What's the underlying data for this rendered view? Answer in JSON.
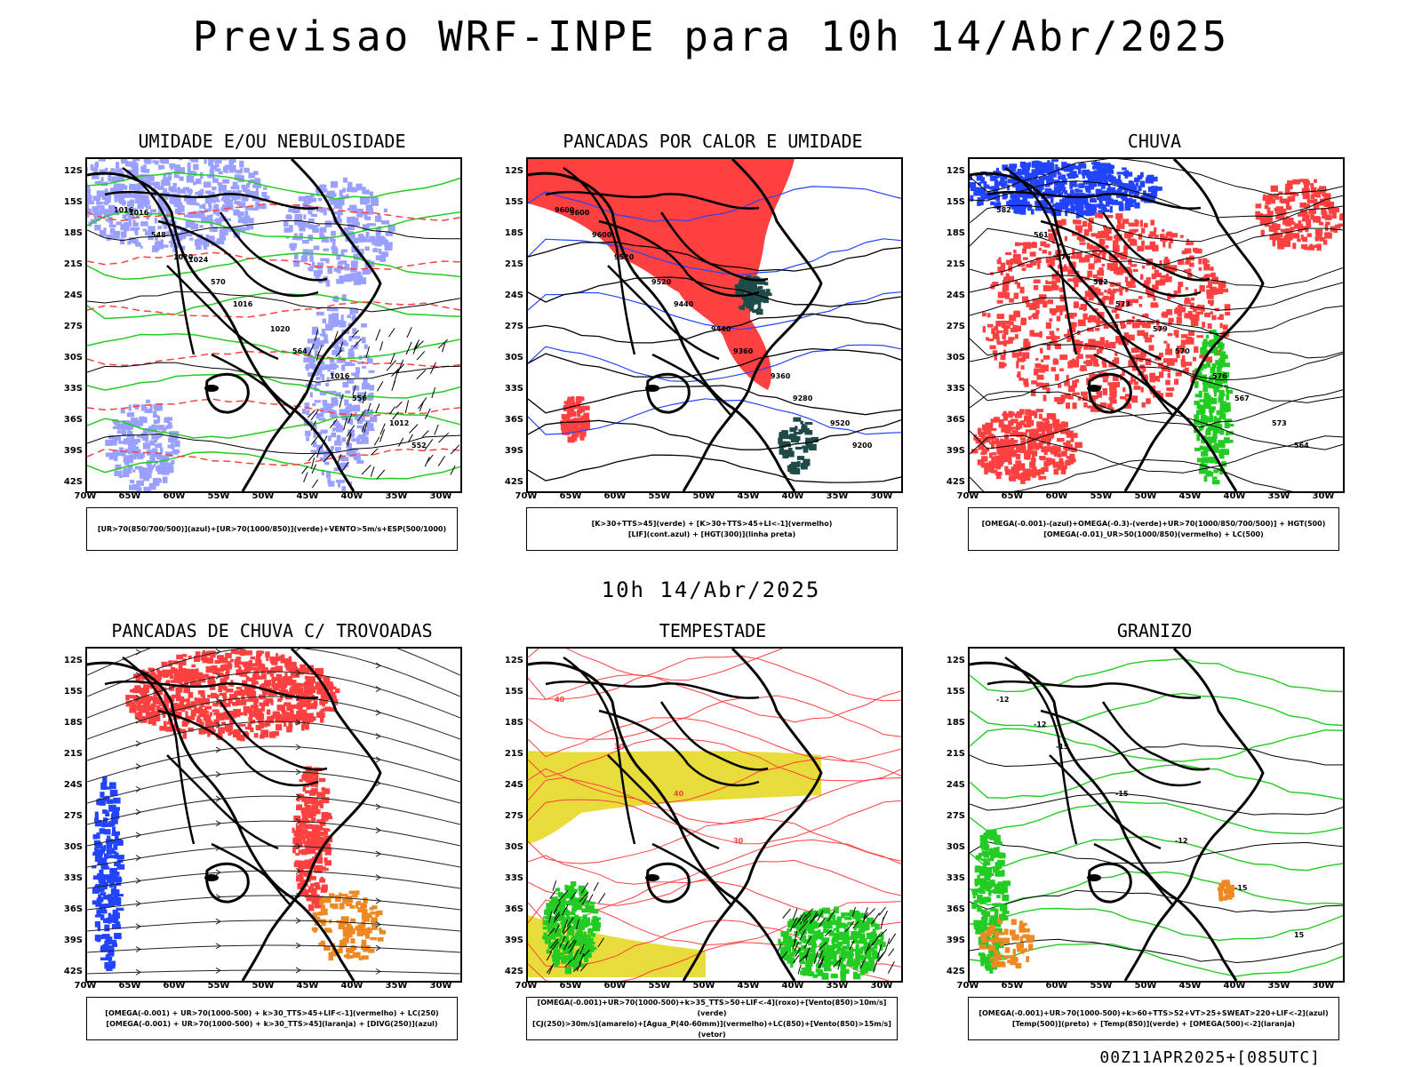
{
  "header": {
    "title": "Previsao WRF-INPE  para 10h 14/Abr/2025",
    "subtitle": "10h 14/Abr/2025",
    "footer": "00Z11APR2025+[085UTC]"
  },
  "axes": {
    "lat_labels": [
      "12S",
      "15S",
      "18S",
      "21S",
      "24S",
      "27S",
      "30S",
      "33S",
      "36S",
      "39S",
      "42S"
    ],
    "lon_labels": [
      "70W",
      "65W",
      "60W",
      "55W",
      "50W",
      "45W",
      "40W",
      "35W",
      "30W"
    ]
  },
  "colors": {
    "blue_fill": "#9aa0ff",
    "dark_blue": "#2244ff",
    "red": "#ff4040",
    "green": "#22cc22",
    "yellow": "#e8dc3a",
    "orange": "#ee8822",
    "teal": "#1e4b48"
  },
  "panels": [
    {
      "title": "UMIDADE E/OU NEBULOSIDADE",
      "legend": [
        "[UR>70(850/700/500)](azul)+[UR>70(1000/850)](verde)+VENTO>5m/s+ESP(500/1000)"
      ],
      "labels": [
        "1016",
        "1020",
        "1016",
        "564",
        "556",
        "552",
        "548",
        "570",
        "1020",
        "1016",
        "1012",
        "1016",
        "1024"
      ]
    },
    {
      "title": "PANCADAS POR CALOR E UMIDADE",
      "legend": [
        "[K>30+TTS>45](verde) + [K>30+TTS>45+LI<-1](vermelho)",
        "[LIF](cont.azul) + [HGT(300)](linha preta)"
      ],
      "labels": [
        "9600",
        "9520",
        "9440",
        "9360",
        "9280",
        "9200",
        "9600",
        "9520",
        "9440",
        "9360",
        "9520",
        "9600"
      ]
    },
    {
      "title": "CHUVA",
      "legend": [
        "[OMEGA(-0.001)-(azul)+OMEGA(-0.3)-(verde)+UR>70(1000/850/700/500)] + HGT(500)",
        "[OMEGA(-0.01)_UR>50(1000/850)(vermelho) + LC(500)"
      ],
      "labels": [
        "582",
        "576",
        "573",
        "570",
        "567",
        "564",
        "561",
        "582",
        "579",
        "576",
        "573"
      ]
    },
    {
      "title": "PANCADAS DE CHUVA C/ TROVOADAS",
      "legend": [
        "[OMEGA(-0.001) + UR>70(1000-500) + k>30_TTS>45+LIF<-1](vermelho) + LC(250)",
        "[OMEGA(-0.001) + UR>70(1000-500) + k>30_TTS>45](laranja) + [DIVG(250)](azul)"
      ],
      "labels": []
    },
    {
      "title": "TEMPESTADE",
      "legend": [
        "[OMEGA(-0.001)+UR>70(1000-500)+k>35_TTS>50+LIF<-4](roxo)+[Vento(850)>10m/s](verde)",
        "[CJ(250)>30m/s](amarelo)+[Agua_P(40-60mm)](vermelho)+LC(850)+[Vento(850)>15m/s](vetor)"
      ],
      "labels": [
        "40",
        "30",
        "40",
        "30"
      ]
    },
    {
      "title": "GRANIZO",
      "legend": [
        "[OMEGA(-0.001)+UR>70(1000-500)+k>60+TTS>52+VT>25+SWEAT>220+LIF<-2](azul)",
        "[Temp(500)](preto) + [Temp(850)](verde) + [OMEGA(500)<-2](laranja)"
      ],
      "labels": [
        "-12",
        "-15",
        "-15",
        "-12",
        "-15",
        "15",
        "-12"
      ]
    }
  ]
}
